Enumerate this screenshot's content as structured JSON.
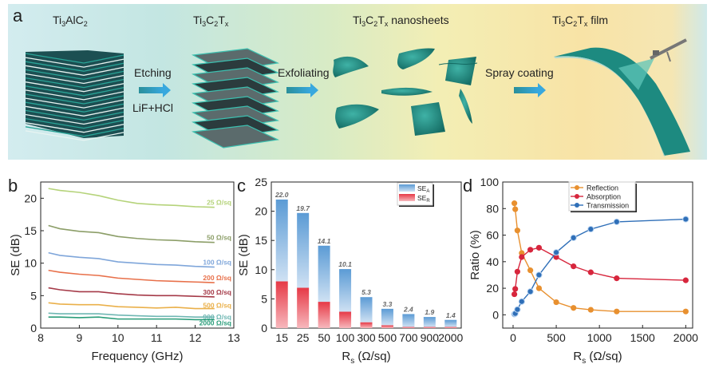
{
  "panel_a": {
    "panel_letter": "a",
    "stages": [
      {
        "name": "Ti3AlC2",
        "base": "Ti",
        "parts": [
          [
            "Ti",
            ""
          ],
          [
            "3",
            "sub"
          ],
          [
            "AlC",
            ""
          ],
          [
            "2",
            "sub"
          ]
        ]
      },
      {
        "name": "Ti3C2Tx",
        "parts": [
          [
            "Ti",
            ""
          ],
          [
            "3",
            "sub"
          ],
          [
            "C",
            ""
          ],
          [
            "2",
            "sub"
          ],
          [
            "T",
            ""
          ],
          [
            "x",
            "sub"
          ]
        ]
      },
      {
        "name": "Ti3C2Tx nanosheets",
        "parts": [
          [
            "Ti",
            ""
          ],
          [
            "3",
            "sub"
          ],
          [
            "C",
            ""
          ],
          [
            "2",
            "sub"
          ],
          [
            "T",
            ""
          ],
          [
            "x",
            "sub"
          ],
          [
            " nanosheets",
            ""
          ]
        ]
      },
      {
        "name": "Ti3C2Tx film",
        "parts": [
          [
            "Ti",
            ""
          ],
          [
            "3",
            "sub"
          ],
          [
            "C",
            ""
          ],
          [
            "2",
            "sub"
          ],
          [
            "T",
            ""
          ],
          [
            "x",
            "sub"
          ],
          [
            " film",
            ""
          ]
        ]
      }
    ],
    "steps": [
      {
        "label": "Etching",
        "sublabel": "LiF+HCl"
      },
      {
        "label": "Exfoliating",
        "sublabel": ""
      },
      {
        "label": "Spray coating",
        "sublabel": ""
      }
    ],
    "colors": {
      "teal": "#1f8f86",
      "teal_dark": "#145f5a",
      "arrow": "#2a9fc9"
    }
  },
  "chart_data": [
    {
      "panel_letter": "b",
      "type": "line",
      "title": "",
      "xlabel": "Frequency (GHz)",
      "ylabel": "SE (dB)",
      "xlim": [
        8,
        13
      ],
      "ylim": [
        0,
        22.5
      ],
      "xticks": [
        8,
        9,
        10,
        11,
        12,
        13
      ],
      "yticks": [
        0,
        5,
        10,
        15,
        20
      ],
      "x": [
        8.2,
        8.5,
        9.0,
        9.5,
        10.0,
        10.5,
        11.0,
        11.5,
        12.0,
        12.5
      ],
      "series": [
        {
          "name": "25 Ω/sq",
          "color": "#b5d37a",
          "values": [
            21.5,
            21.2,
            20.9,
            20.4,
            19.7,
            19.2,
            19.0,
            18.9,
            18.7,
            18.6
          ]
        },
        {
          "name": "50 Ω/sq",
          "color": "#8c9e68",
          "values": [
            15.8,
            15.3,
            14.9,
            14.7,
            14.1,
            13.8,
            13.6,
            13.5,
            13.3,
            13.2
          ]
        },
        {
          "name": "100 Ω/sq",
          "color": "#7fa6da",
          "values": [
            11.6,
            11.2,
            10.9,
            10.7,
            10.2,
            10.0,
            9.8,
            9.7,
            9.5,
            9.4
          ]
        },
        {
          "name": "200 Ω/sq",
          "color": "#e8704a",
          "values": [
            8.9,
            8.6,
            8.3,
            8.1,
            7.7,
            7.5,
            7.3,
            7.2,
            7.1,
            7.0
          ]
        },
        {
          "name": "300 Ω/sq",
          "color": "#a53a48",
          "values": [
            6.2,
            5.9,
            5.6,
            5.6,
            5.3,
            5.1,
            5.0,
            5.0,
            4.9,
            4.8
          ]
        },
        {
          "name": "500 Ω/sq",
          "color": "#eab04a",
          "values": [
            3.9,
            3.7,
            3.6,
            3.6,
            3.3,
            3.2,
            3.1,
            3.2,
            3.0,
            3.0
          ]
        },
        {
          "name": "900 Ω/sq",
          "color": "#6fb7b3",
          "values": [
            2.3,
            2.2,
            2.2,
            2.2,
            2.0,
            1.9,
            1.8,
            1.8,
            1.7,
            1.7
          ]
        },
        {
          "name": "2000 Ω/sq",
          "color": "#2a9d7a",
          "values": [
            1.7,
            1.7,
            1.6,
            1.7,
            1.4,
            1.4,
            1.4,
            1.4,
            1.3,
            1.3
          ]
        }
      ]
    },
    {
      "panel_letter": "c",
      "type": "bar",
      "stacked": true,
      "title": "",
      "xlabel": "Rs (Ω/sq)",
      "xlabel_main": "R",
      "xlabel_sub": "s",
      "xlabel_rest": " (Ω/sq)",
      "ylabel": "SE (dB)",
      "ylim": [
        0,
        25
      ],
      "yticks": [
        0,
        5,
        10,
        15,
        20,
        25
      ],
      "categories": [
        "15",
        "25",
        "50",
        "100",
        "300",
        "500",
        "700",
        "900",
        "2000"
      ],
      "series": [
        {
          "name": "SEA",
          "legend_main": "SE",
          "legend_sub": "A",
          "color": "#5b9bd5",
          "values": [
            14.0,
            12.8,
            9.6,
            7.3,
            4.3,
            2.8,
            2.2,
            1.7,
            1.2
          ]
        },
        {
          "name": "SER",
          "legend_main": "SE",
          "legend_sub": "R",
          "color": "#e63946",
          "values": [
            8.0,
            6.9,
            4.5,
            2.8,
            1.0,
            0.5,
            0.2,
            0.2,
            0.2
          ]
        }
      ],
      "totals": [
        "22.0",
        "19.7",
        "14.1",
        "10.1",
        "5.3",
        "3.3",
        "2.4",
        "1.9",
        "1.4"
      ],
      "legend_position": "top-right"
    },
    {
      "panel_letter": "d",
      "type": "line",
      "title": "",
      "xlabel": "Rs (Ω/sq)",
      "xlabel_main": "R",
      "xlabel_sub": "s",
      "xlabel_rest": " (Ω/sq)",
      "ylabel": "Ratio (%)",
      "xlim": [
        -120,
        2080
      ],
      "ylim": [
        -10,
        100
      ],
      "xticks": [
        0,
        500,
        1000,
        1500,
        2000
      ],
      "yticks": [
        0,
        20,
        40,
        60,
        80,
        100
      ],
      "x": [
        15,
        25,
        50,
        100,
        200,
        300,
        500,
        700,
        900,
        1200,
        2000
      ],
      "series": [
        {
          "name": "Reflection",
          "color": "#e8902f",
          "marker": "circle",
          "values": [
            84,
            79.5,
            63.5,
            46.5,
            33.5,
            20,
            9.5,
            5.2,
            3.8,
            2.5,
            2.5
          ]
        },
        {
          "name": "Absorption",
          "color": "#d7263d",
          "marker": "circle",
          "values": [
            15.5,
            19.5,
            32.5,
            43.5,
            49,
            50.5,
            43.5,
            36.5,
            32,
            27.5,
            26
          ]
        },
        {
          "name": "Transmission",
          "color": "#2f6fb8",
          "marker": "sphere",
          "values": [
            0.5,
            1.0,
            4.0,
            10,
            17.5,
            30,
            47,
            58,
            64.5,
            70,
            72
          ]
        }
      ],
      "legend_position": "top-center"
    }
  ]
}
